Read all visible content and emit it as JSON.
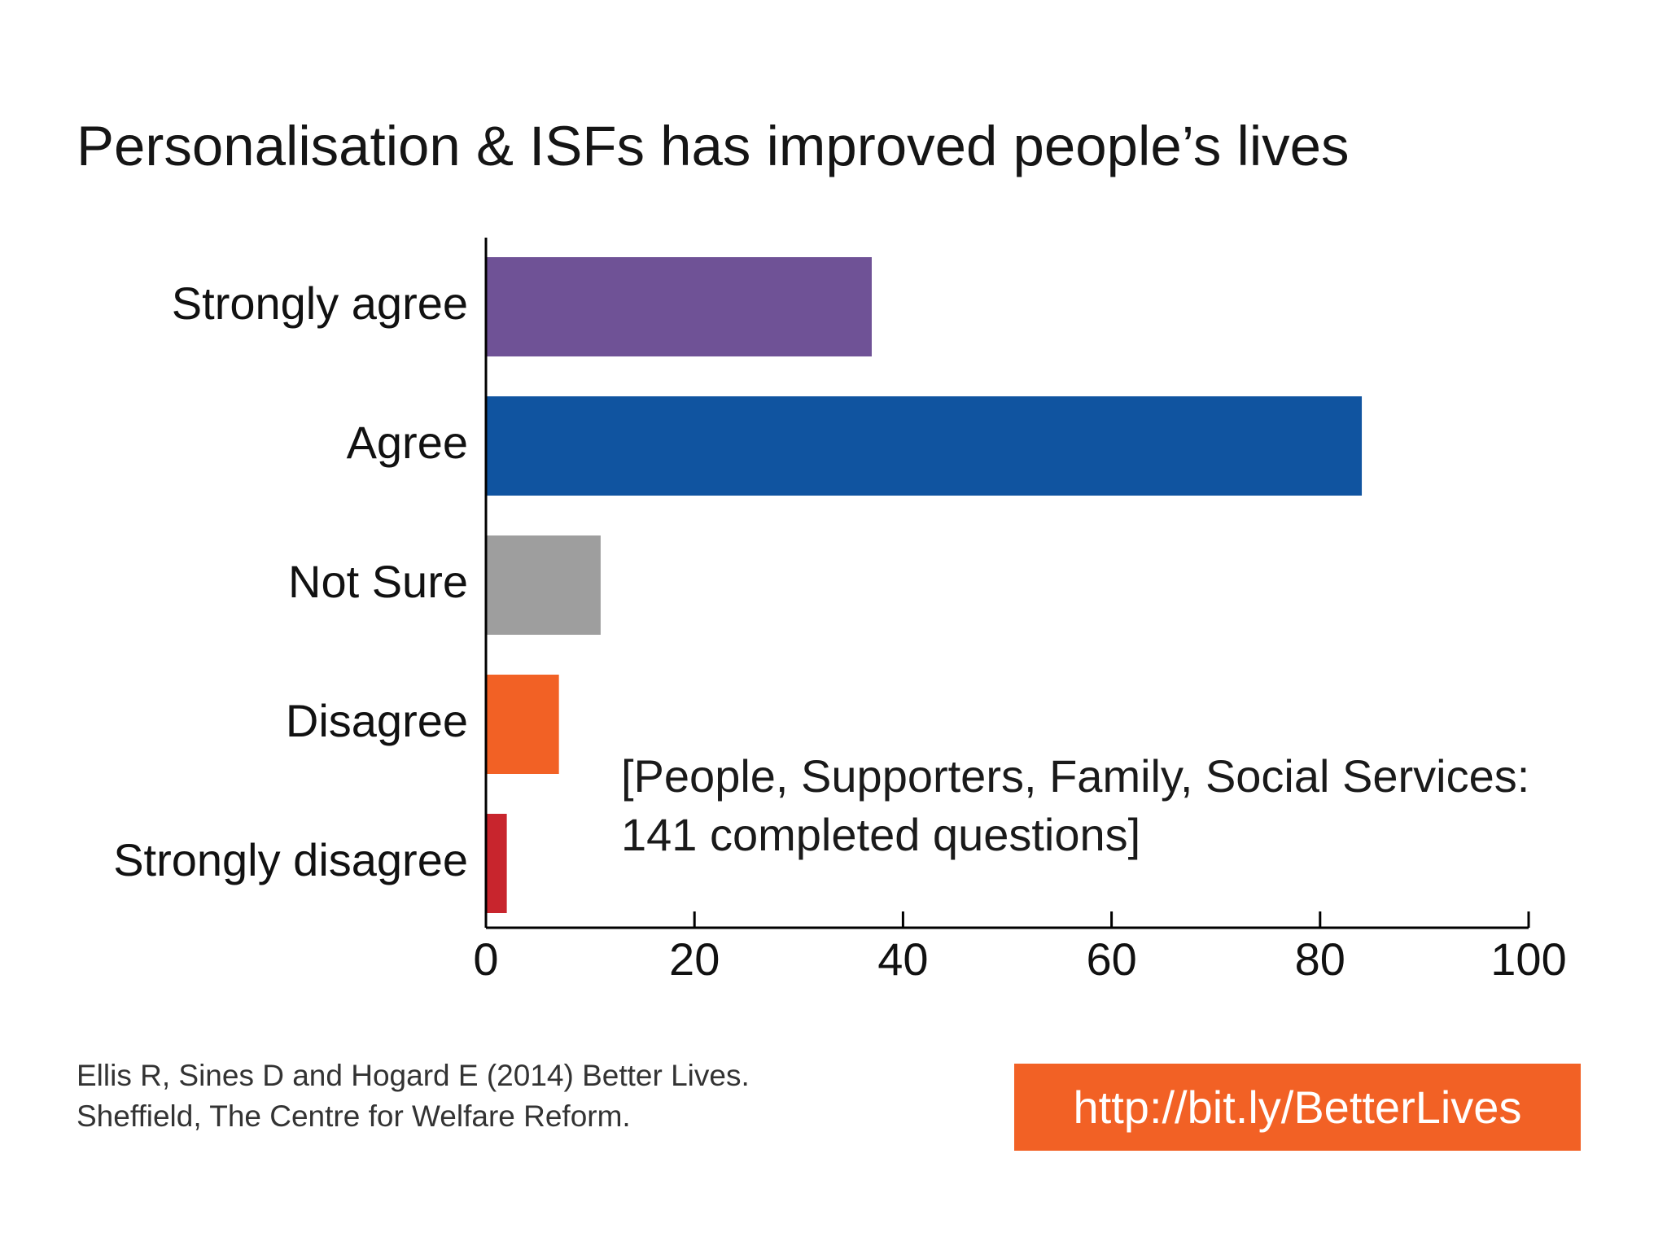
{
  "title": "Personalisation & ISFs has improved people’s lives",
  "note": {
    "line1": "[People, Supporters, Family, Social Services:",
    "line2": "141 completed questions]"
  },
  "citation": {
    "line1": "Ellis R, Sines D and Hogard E (2014) Better Lives.",
    "line2": "Sheffield, The Centre for Welfare Reform."
  },
  "link": {
    "label": "http://bit.ly/BetterLives"
  },
  "chart_data": {
    "type": "bar",
    "orientation": "horizontal",
    "title": "Personalisation & ISFs has improved people’s lives",
    "categories": [
      "Strongly agree",
      "Agree",
      "Not Sure",
      "Disagree",
      "Strongly disagree"
    ],
    "values": [
      37,
      84,
      11,
      7,
      2
    ],
    "colors": [
      "#6f5296",
      "#1054a0",
      "#9e9e9e",
      "#f26125",
      "#c8252d"
    ],
    "xlim": [
      0,
      100
    ],
    "xticks": [
      "0",
      "20",
      "40",
      "60",
      "80",
      "100"
    ],
    "xlabel": "",
    "ylabel": "",
    "grid": false,
    "legend": "none"
  }
}
